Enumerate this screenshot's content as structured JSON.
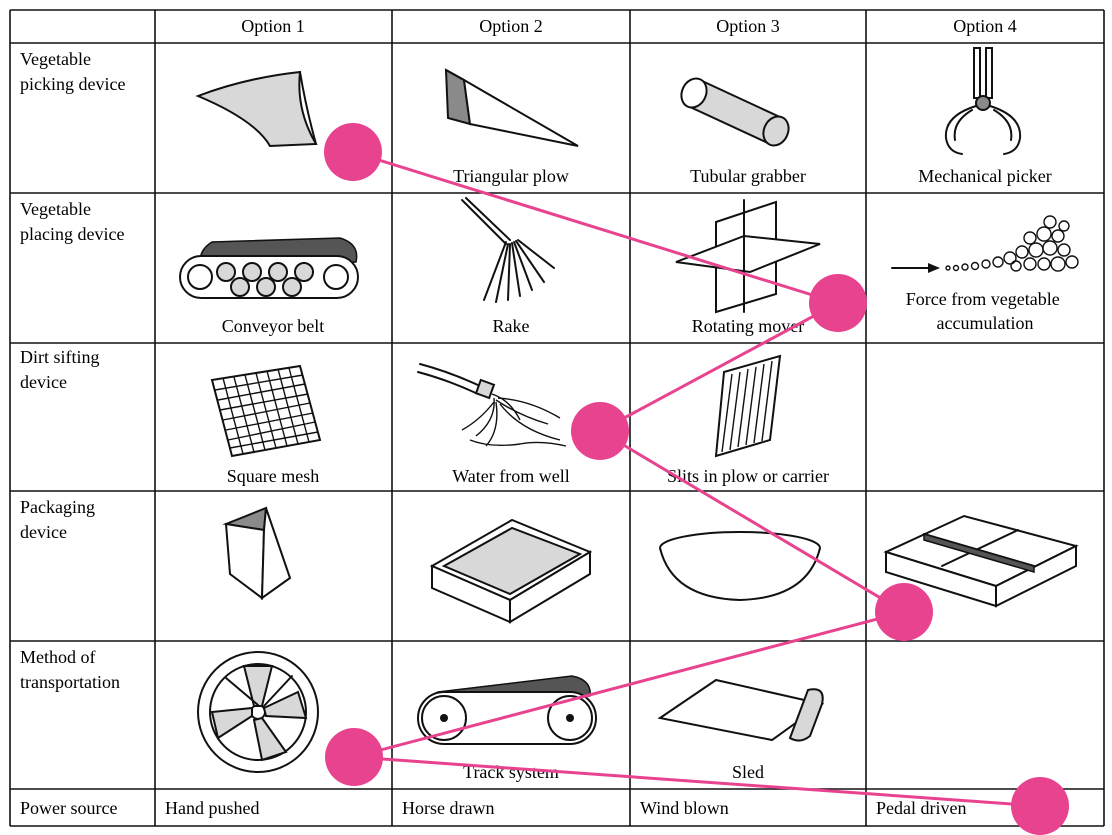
{
  "columns": [
    "Option 1",
    "Option 2",
    "Option 3",
    "Option 4"
  ],
  "rows": [
    {
      "label": [
        "Vegetable",
        "picking device"
      ],
      "options": [
        {
          "icon": "curved-scoop-icon",
          "caption": ""
        },
        {
          "icon": "triangular-plow-icon",
          "caption": "Triangular plow"
        },
        {
          "icon": "tubular-grabber-icon",
          "caption": "Tubular grabber"
        },
        {
          "icon": "mechanical-picker-icon",
          "caption": "Mechanical picker"
        }
      ]
    },
    {
      "label": [
        "Vegetable",
        "placing device"
      ],
      "options": [
        {
          "icon": "conveyor-belt-icon",
          "caption": "Conveyor belt"
        },
        {
          "icon": "rake-icon",
          "caption": "Rake"
        },
        {
          "icon": "rotating-mover-icon",
          "caption": "Rotating mover"
        },
        {
          "icon": "vegetable-accumulation-icon",
          "caption": [
            "Force from vegetable",
            "accumulation"
          ]
        }
      ]
    },
    {
      "label": [
        "Dirt sifting",
        "device"
      ],
      "options": [
        {
          "icon": "square-mesh-icon",
          "caption": "Square mesh"
        },
        {
          "icon": "water-hose-icon",
          "caption": "Water from well"
        },
        {
          "icon": "slits-plow-icon",
          "caption": "Slits in plow or carrier"
        },
        {
          "icon": "",
          "caption": ""
        }
      ]
    },
    {
      "label": [
        "Packaging",
        "device"
      ],
      "options": [
        {
          "icon": "triangular-prism-icon",
          "caption": ""
        },
        {
          "icon": "open-box-icon",
          "caption": ""
        },
        {
          "icon": "bowl-icon",
          "caption": ""
        },
        {
          "icon": "divided-tray-icon",
          "caption": ""
        }
      ]
    },
    {
      "label": [
        "Method of",
        "transportation"
      ],
      "options": [
        {
          "icon": "wheel-icon",
          "caption": ""
        },
        {
          "icon": "track-system-icon",
          "caption": "Track system"
        },
        {
          "icon": "sled-icon",
          "caption": "Sled"
        },
        {
          "icon": "",
          "caption": ""
        }
      ]
    },
    {
      "label": [
        "Power source"
      ],
      "options": [
        {
          "icon": "",
          "caption": "Hand pushed"
        },
        {
          "icon": "",
          "caption": "Horse drawn"
        },
        {
          "icon": "",
          "caption": "Wind blown"
        },
        {
          "icon": "",
          "caption": "Pedal driven"
        }
      ]
    }
  ],
  "selection_path": {
    "color": "#e8438f",
    "chosen": [
      {
        "row": "Vegetable picking device",
        "option": "Option 1"
      },
      {
        "row": "Vegetable placing device",
        "option": "Option 3"
      },
      {
        "row": "Dirt sifting device",
        "option": "Option 2"
      },
      {
        "row": "Packaging device",
        "option": "Option 4"
      },
      {
        "row": "Method of transportation",
        "option": "Option 1"
      },
      {
        "row": "Power source",
        "option": "Option 4"
      }
    ]
  }
}
